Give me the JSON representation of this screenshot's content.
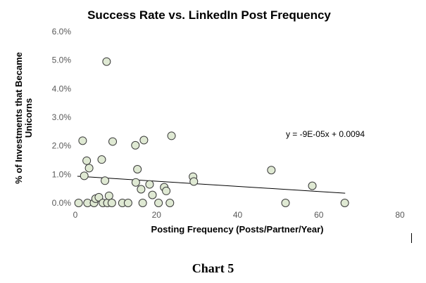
{
  "chart_data": {
    "type": "scatter",
    "title": "Success Rate vs. LinkedIn Post Frequency",
    "xlabel": "Posting Frequency (Posts/Partner/Year)",
    "ylabel_lines": [
      "% of Investments that Became",
      "Unicorns"
    ],
    "xlim": [
      0,
      80
    ],
    "ylim": [
      0,
      0.06
    ],
    "xticks": [
      "0",
      "20",
      "40",
      "60",
      "80"
    ],
    "yticks": [
      "0.0%",
      "1.0%",
      "2.0%",
      "3.0%",
      "4.0%",
      "5.0%",
      "6.0%"
    ],
    "grid": false,
    "marker_fill": "#dfe9d3",
    "marker_edge": "#3a3a3a",
    "trendline_color": "#000000",
    "trendline": {
      "slope": -9e-05,
      "intercept": 0.0094,
      "x_range": [
        0.5,
        66.5
      ]
    },
    "equation": "y = -9E-05x + 0.0094",
    "points": [
      {
        "x": 0.8,
        "y": 0.0
      },
      {
        "x": 1.8,
        "y": 0.0218
      },
      {
        "x": 2.2,
        "y": 0.0095
      },
      {
        "x": 2.8,
        "y": 0.0148
      },
      {
        "x": 3.0,
        "y": 0.0
      },
      {
        "x": 3.4,
        "y": 0.0122
      },
      {
        "x": 4.6,
        "y": 0.0
      },
      {
        "x": 5.0,
        "y": 0.0015
      },
      {
        "x": 5.8,
        "y": 0.002
      },
      {
        "x": 6.5,
        "y": 0.0152
      },
      {
        "x": 6.8,
        "y": 0.0
      },
      {
        "x": 7.3,
        "y": 0.0078
      },
      {
        "x": 7.7,
        "y": 0.0495
      },
      {
        "x": 7.9,
        "y": 0.0
      },
      {
        "x": 8.3,
        "y": 0.0025
      },
      {
        "x": 9.0,
        "y": 0.0
      },
      {
        "x": 9.2,
        "y": 0.0215
      },
      {
        "x": 11.6,
        "y": 0.0
      },
      {
        "x": 13.0,
        "y": 0.0
      },
      {
        "x": 14.8,
        "y": 0.0202
      },
      {
        "x": 14.9,
        "y": 0.0072
      },
      {
        "x": 15.3,
        "y": 0.0118
      },
      {
        "x": 16.2,
        "y": 0.0048
      },
      {
        "x": 16.6,
        "y": 0.0
      },
      {
        "x": 16.9,
        "y": 0.022
      },
      {
        "x": 18.3,
        "y": 0.0065
      },
      {
        "x": 19.0,
        "y": 0.0028
      },
      {
        "x": 20.5,
        "y": 0.0
      },
      {
        "x": 21.9,
        "y": 0.0055
      },
      {
        "x": 22.4,
        "y": 0.0042
      },
      {
        "x": 23.3,
        "y": 0.0
      },
      {
        "x": 23.7,
        "y": 0.0235
      },
      {
        "x": 29.0,
        "y": 0.0092
      },
      {
        "x": 29.2,
        "y": 0.0075
      },
      {
        "x": 48.3,
        "y": 0.0115
      },
      {
        "x": 51.8,
        "y": 0.0
      },
      {
        "x": 58.4,
        "y": 0.006
      },
      {
        "x": 66.4,
        "y": 0.0
      }
    ]
  },
  "caption": "Chart 5"
}
